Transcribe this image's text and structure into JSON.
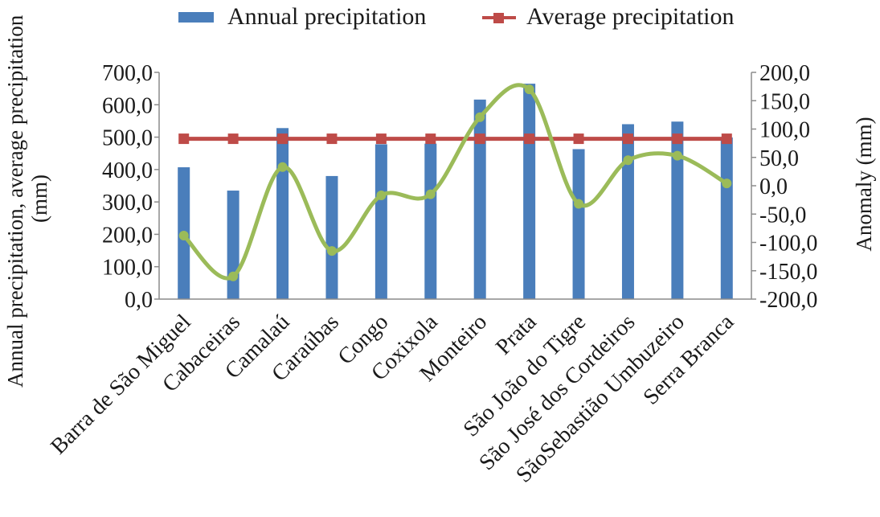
{
  "chart_data": {
    "type": "bar",
    "title": "",
    "categories": [
      "Barra de São Miguel",
      "Cabaceiras",
      "Camalaú",
      "Caraúbas",
      "Congo",
      "Coxixola",
      "Monteiro",
      "Prata",
      "São João do Tigre",
      "São José dos Cordeiros",
      "SãoSebastião Umbuzeiro",
      "Serra Branca"
    ],
    "series": [
      {
        "name": "Annual precipitation",
        "type": "bar",
        "axis": "left",
        "color": "#4a7ebb",
        "values": [
          407,
          335,
          528,
          380,
          478,
          480,
          616,
          665,
          463,
          540,
          548,
          499
        ]
      },
      {
        "name": "Average precipitation",
        "type": "line",
        "axis": "left",
        "color": "#be4b48",
        "values": [
          495,
          495,
          495,
          495,
          495,
          495,
          495,
          495,
          495,
          495,
          495,
          495
        ]
      },
      {
        "name": "",
        "type": "line",
        "axis": "right",
        "color": "#9bbb59",
        "smooth": true,
        "values": [
          -88,
          -160,
          33,
          -115,
          -17,
          -15,
          121,
          170,
          -32,
          45,
          53,
          4
        ]
      }
    ],
    "ylabel": "Annual precipitation, average precipitation (mm)",
    "y2label": "Anomaly (mm)",
    "ylim": [
      0,
      700
    ],
    "y2lim": [
      -200,
      200
    ],
    "yticks": [
      "700,0",
      "600,0",
      "500,0",
      "400,0",
      "300,0",
      "200,0",
      "100,0",
      "0,0"
    ],
    "y2ticks": [
      "200,0",
      "150,0",
      "100,0",
      "50,0",
      "0,0",
      "-50,0",
      "-100,0",
      "-150,0",
      "-200,0"
    ],
    "legend_position": "top",
    "grid": false
  }
}
